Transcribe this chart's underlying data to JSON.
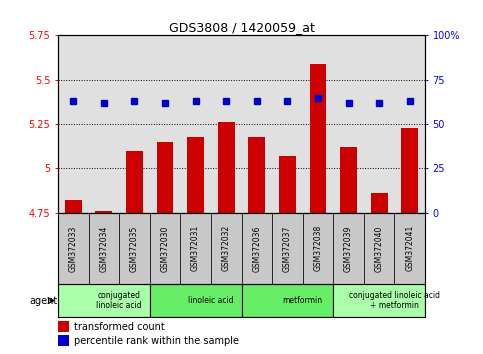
{
  "title": "GDS3808 / 1420059_at",
  "samples": [
    "GSM372033",
    "GSM372034",
    "GSM372035",
    "GSM372030",
    "GSM372031",
    "GSM372032",
    "GSM372036",
    "GSM372037",
    "GSM372038",
    "GSM372039",
    "GSM372040",
    "GSM372041"
  ],
  "bar_values": [
    4.82,
    4.76,
    5.1,
    5.15,
    5.18,
    5.26,
    5.18,
    5.07,
    5.59,
    5.12,
    4.86,
    5.23
  ],
  "dot_values": [
    63,
    62,
    63,
    62,
    63,
    63,
    63,
    63,
    65,
    62,
    62,
    63
  ],
  "ylim_left": [
    4.75,
    5.75
  ],
  "ylim_right": [
    0,
    100
  ],
  "yticks_left": [
    4.75,
    5.0,
    5.25,
    5.5,
    5.75
  ],
  "yticks_right": [
    0,
    25,
    50,
    75,
    100
  ],
  "ytick_labels_left": [
    "4.75",
    "5",
    "5.25",
    "5.5",
    "5.75"
  ],
  "ytick_labels_right": [
    "0",
    "25",
    "50",
    "75",
    "100%"
  ],
  "bar_color": "#cc0000",
  "dot_color": "#0000cc",
  "bar_bottom": 4.75,
  "groups": [
    {
      "label": "conjugated\nlinoleic acid",
      "start": 0,
      "end": 3,
      "color": "#aaffaa"
    },
    {
      "label": "linoleic acid",
      "start": 3,
      "end": 6,
      "color": "#66ee66"
    },
    {
      "label": "metformin",
      "start": 6,
      "end": 9,
      "color": "#66ee66"
    },
    {
      "label": "conjugated linoleic acid\n+ metformin",
      "start": 9,
      "end": 12,
      "color": "#aaffaa"
    }
  ],
  "legend_red_label": "transformed count",
  "legend_blue_label": "percentile rank within the sample",
  "agent_label": "agent",
  "bg_color_plot": "#e0e0e0",
  "bg_color_sample_row": "#c8c8c8",
  "dotted_line_color": "#000000",
  "white_bg": "#ffffff"
}
